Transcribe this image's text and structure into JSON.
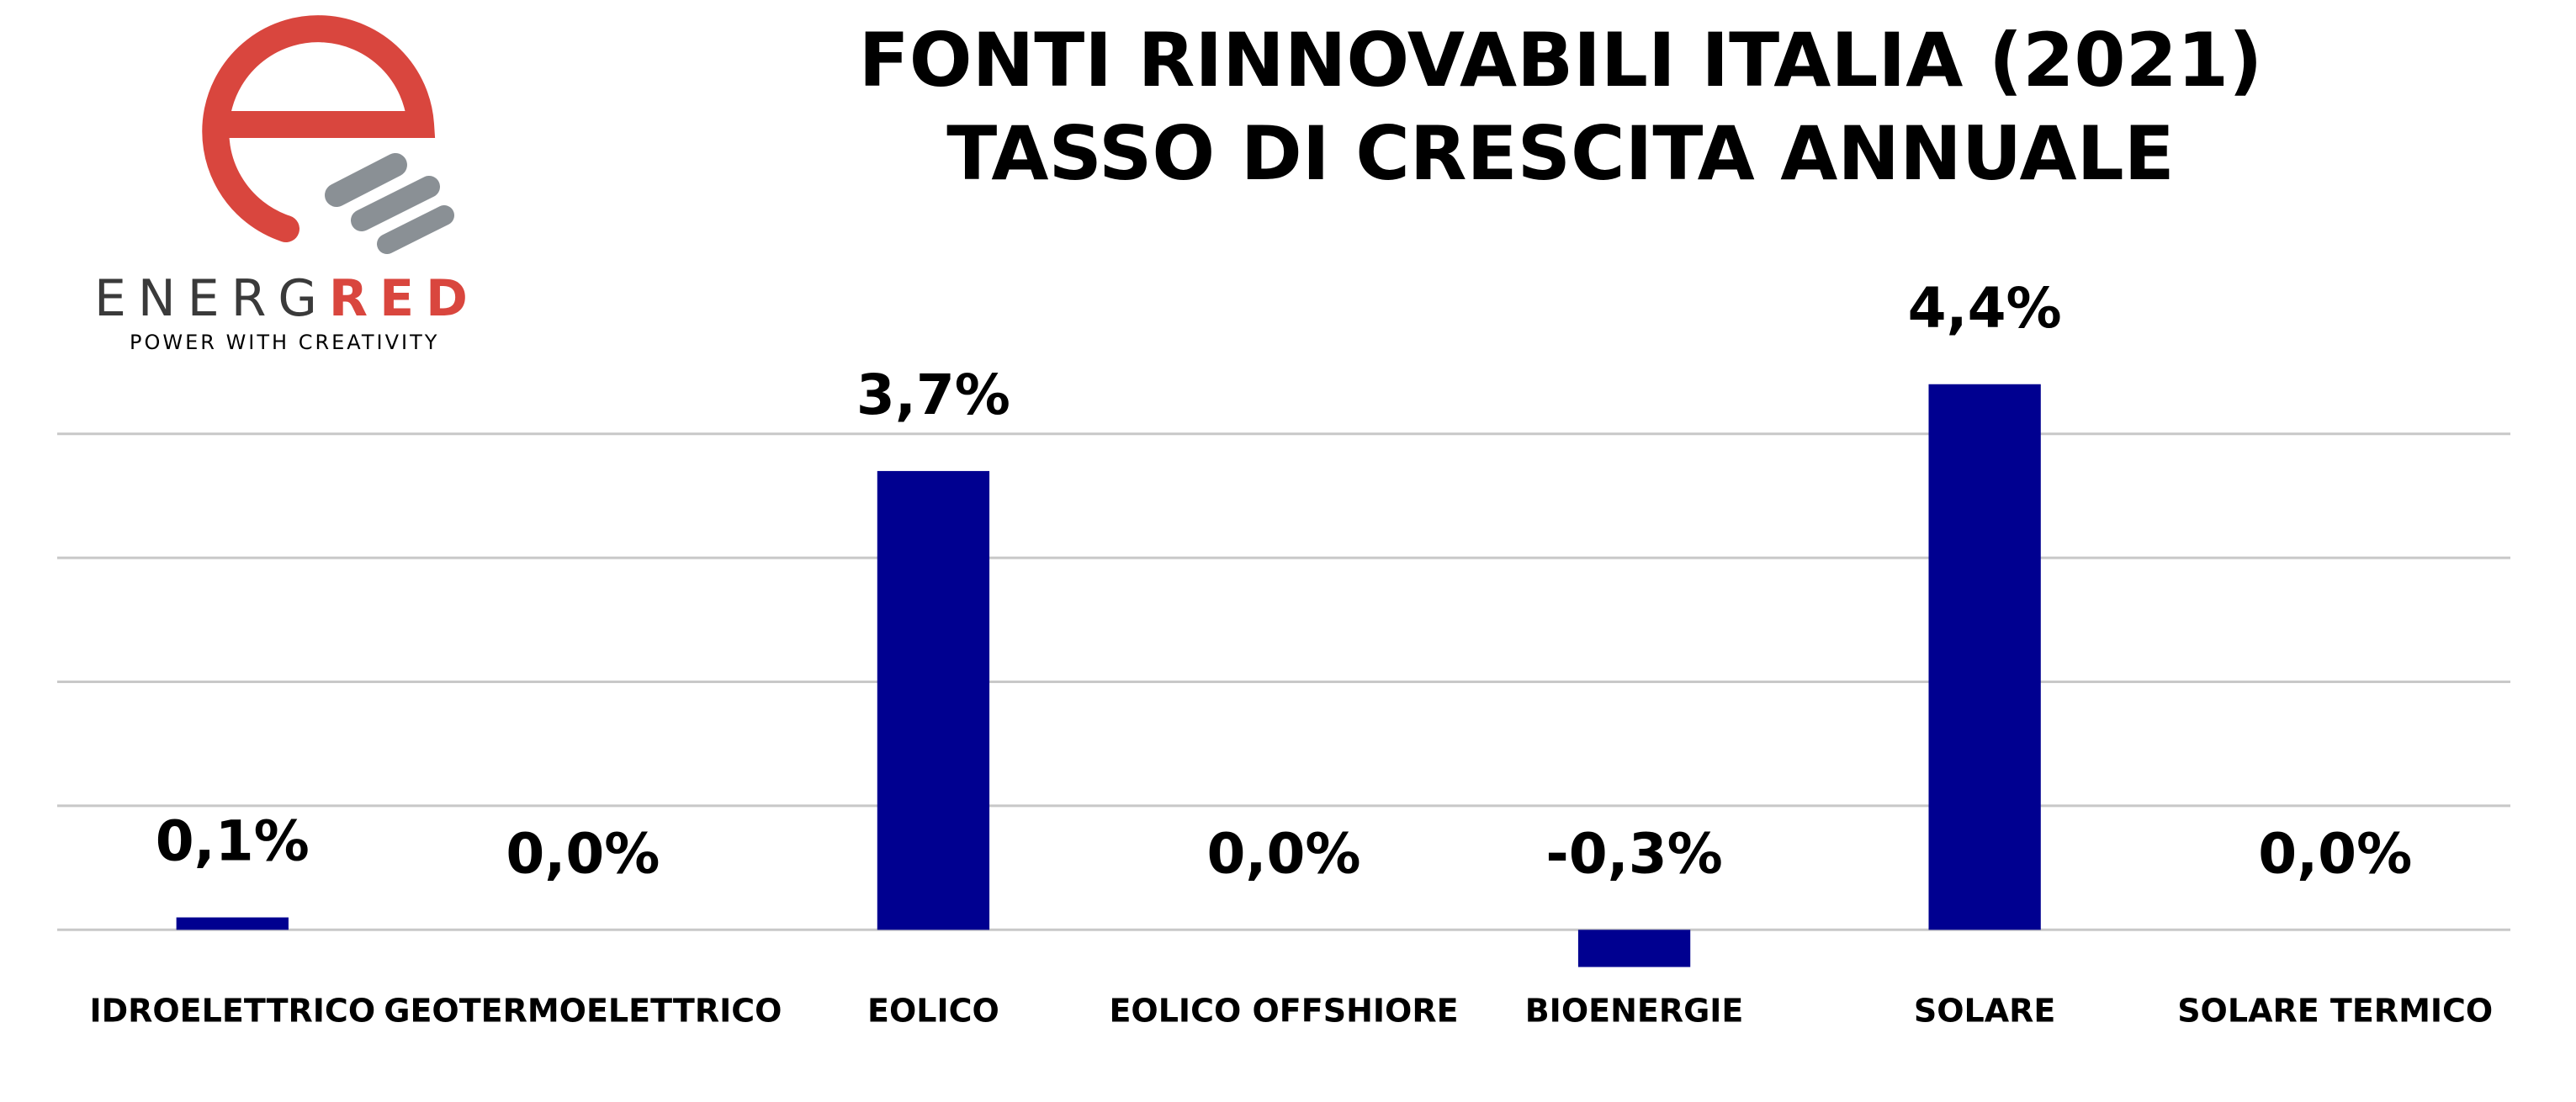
{
  "logo": {
    "brand_first": "ENERG",
    "brand_second": "RED",
    "tagline": "POWER WITH CREATIVITY"
  },
  "chart_data": {
    "type": "bar",
    "title": "FONTI RINNOVABILI ITALIA (2021)",
    "subtitle": "TASSO DI CRESCITA ANNUALE",
    "categories": [
      "IDROELETTRICO",
      "GEOTERMOELETTRICO",
      "EOLICO",
      "EOLICO OFFSHIORE",
      "BIOENERGIE",
      "SOLARE",
      "SOLARE TERMICO"
    ],
    "values": [
      0.1,
      0,
      3.7,
      0,
      -0.3,
      4.4,
      0
    ],
    "value_labels": [
      "0,1%",
      "0,0%",
      "3,7%",
      "0,0%",
      "-0,3%",
      "4,4%",
      "0,0%"
    ],
    "color": "#000090",
    "ylim": [
      -0.5,
      4.5
    ],
    "yticks": [
      0,
      1,
      2,
      3,
      4
    ],
    "grid": true
  }
}
